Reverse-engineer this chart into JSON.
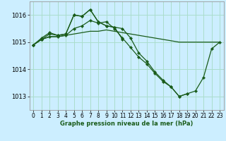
{
  "bg_color": "#cceeff",
  "grid_color": "#aaddcc",
  "line_color": "#1a5c1a",
  "marker_color": "#1a5c1a",
  "xlabel": "Graphe pression niveau de la mer (hPa)",
  "ylim": [
    1012.5,
    1016.5
  ],
  "xlim": [
    -0.5,
    23.5
  ],
  "yticks": [
    1013,
    1014,
    1015,
    1016
  ],
  "xticks": [
    0,
    1,
    2,
    3,
    4,
    5,
    6,
    7,
    8,
    9,
    10,
    11,
    12,
    13,
    14,
    15,
    16,
    17,
    18,
    19,
    20,
    21,
    22,
    23
  ],
  "xtick_labels": [
    "0",
    "1",
    "2",
    "3",
    "4",
    "5",
    "6",
    "7",
    "8",
    "9",
    "10",
    "11",
    "12",
    "13",
    "14",
    "15",
    "16",
    "17",
    "18",
    "19",
    "20",
    "21",
    "22",
    "23"
  ],
  "series": [
    {
      "x": [
        0,
        1,
        2,
        3,
        4,
        5,
        6,
        7,
        8,
        9,
        10,
        11,
        12,
        13,
        14,
        15,
        16,
        17,
        18,
        19,
        20,
        21,
        22,
        23
      ],
      "y": [
        1014.9,
        1015.1,
        1015.2,
        1015.2,
        1015.25,
        1015.3,
        1015.35,
        1015.4,
        1015.4,
        1015.45,
        1015.4,
        1015.35,
        1015.3,
        1015.25,
        1015.2,
        1015.15,
        1015.1,
        1015.05,
        1015.0,
        1015.0,
        1015.0,
        1015.0,
        1015.0,
        1015.0
      ],
      "has_markers": false
    },
    {
      "x": [
        0,
        1,
        2,
        3,
        4,
        5,
        6,
        7,
        8,
        9,
        10,
        11,
        12,
        13,
        14,
        15,
        16,
        17,
        18,
        19,
        20,
        21,
        22,
        23
      ],
      "y": [
        1014.9,
        1015.1,
        1015.3,
        1015.25,
        1015.3,
        1016.0,
        1015.95,
        1016.2,
        1015.75,
        1015.6,
        1015.55,
        1015.5,
        1015.15,
        1014.6,
        1014.3,
        1013.9,
        1013.6,
        1013.35,
        1013.0,
        1013.1,
        1013.2,
        1013.7,
        1014.75,
        1015.0
      ],
      "has_markers": true
    },
    {
      "x": [
        0,
        1,
        2,
        3,
        4,
        5,
        6,
        7,
        8,
        9,
        10,
        11
      ],
      "y": [
        1014.9,
        1015.15,
        1015.35,
        1015.25,
        1015.3,
        1016.0,
        1015.95,
        1016.2,
        1015.75,
        1015.6,
        1015.55,
        1015.1
      ],
      "has_markers": true
    },
    {
      "x": [
        0,
        1,
        2,
        3,
        4,
        5,
        6,
        7,
        8,
        9,
        10,
        11,
        12,
        13,
        14,
        15,
        16,
        17,
        18,
        19
      ],
      "y": [
        1014.9,
        1015.1,
        1015.2,
        1015.2,
        1015.25,
        1015.5,
        1015.6,
        1015.8,
        1015.7,
        1015.75,
        1015.5,
        1015.15,
        1014.8,
        1014.45,
        1014.2,
        1013.85,
        1013.55,
        1013.35,
        1013.0,
        1013.1
      ],
      "has_markers": true
    }
  ]
}
